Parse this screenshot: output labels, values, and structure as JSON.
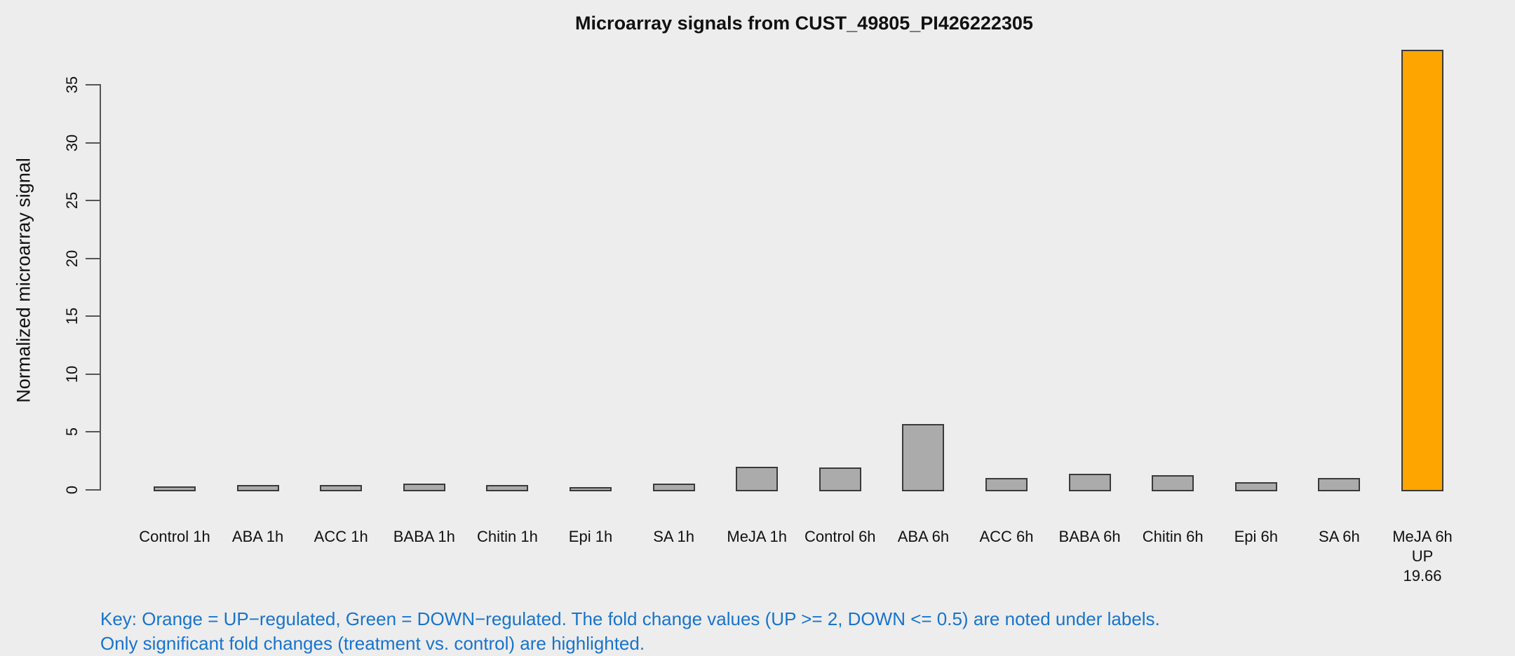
{
  "chart_data": {
    "type": "bar",
    "title": "Microarray signals from CUST_49805_PI426222305",
    "ylabel": "Normalized microarray signal",
    "xlabel": "",
    "ylim": [
      0,
      38.5
    ],
    "yticks": [
      0,
      5,
      10,
      15,
      20,
      25,
      30,
      35
    ],
    "grid": false,
    "legend": "none",
    "bars": [
      {
        "label": "Control 1h",
        "value": 0.3,
        "state": "normal"
      },
      {
        "label": "ABA 1h",
        "value": 0.45,
        "state": "normal"
      },
      {
        "label": "ACC 1h",
        "value": 0.4,
        "state": "normal"
      },
      {
        "label": "BABA 1h",
        "value": 0.55,
        "state": "normal"
      },
      {
        "label": "Chitin 1h",
        "value": 0.45,
        "state": "normal"
      },
      {
        "label": "Epi 1h",
        "value": 0.25,
        "state": "normal"
      },
      {
        "label": "SA 1h",
        "value": 0.55,
        "state": "normal"
      },
      {
        "label": "MeJA 1h",
        "value": 2.0,
        "state": "normal"
      },
      {
        "label": "Control 6h",
        "value": 1.93,
        "state": "normal"
      },
      {
        "label": "ABA 6h",
        "value": 5.7,
        "state": "normal"
      },
      {
        "label": "ACC 6h",
        "value": 1.05,
        "state": "normal"
      },
      {
        "label": "BABA 6h",
        "value": 1.4,
        "state": "normal"
      },
      {
        "label": "Chitin 6h",
        "value": 1.3,
        "state": "normal"
      },
      {
        "label": "Epi 6h",
        "value": 0.65,
        "state": "normal"
      },
      {
        "label": "SA 6h",
        "value": 1.0,
        "state": "normal"
      },
      {
        "label": "MeJA 6h",
        "value": 38.02,
        "state": "up",
        "sublabels": [
          "UP",
          "19.66"
        ]
      }
    ]
  },
  "key": {
    "line1": "Key: Orange = UP−regulated, Green = DOWN−regulated. The fold change values (UP >= 2, DOWN <= 0.5) are noted under labels.",
    "line2": "Only significant fold changes (treatment vs. control) are highlighted."
  },
  "colors": {
    "background": "#EDEDED",
    "bar_default": "#ABABAB",
    "bar_up_highlight": "#FFA500",
    "bar_border": "#3A3A3A",
    "axis": "#555555",
    "key_text": "#1874CD",
    "text": "#111111"
  }
}
